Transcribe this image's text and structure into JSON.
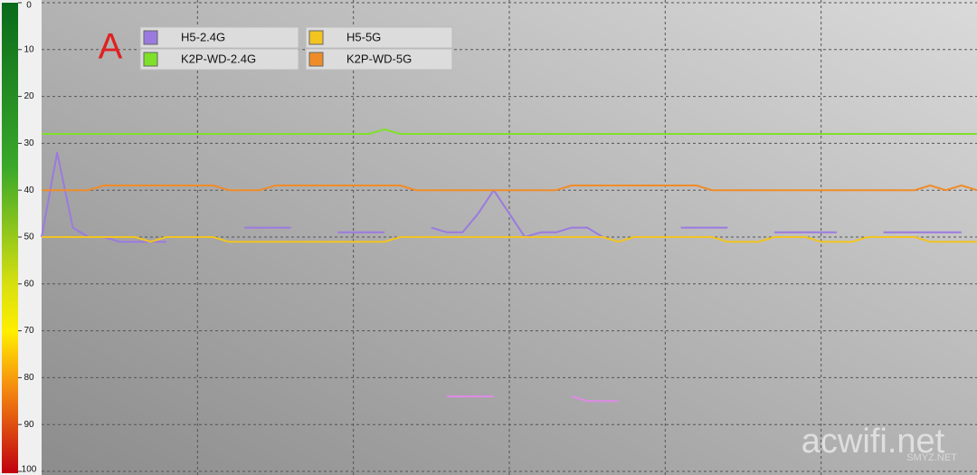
{
  "chart_data": {
    "type": "line",
    "annotation": "A",
    "watermark": "acwifi.net",
    "watermark_small": "SMYZ.NET",
    "ylim": [
      0,
      100
    ],
    "yticks": [
      0,
      10,
      20,
      30,
      40,
      50,
      60,
      70,
      80,
      90,
      100
    ],
    "y_inverted": true,
    "grid": true,
    "xlim": [
      0,
      60
    ],
    "xgrid": [
      10,
      20,
      30,
      40,
      50
    ],
    "x": [
      0,
      1,
      2,
      3,
      4,
      5,
      6,
      7,
      8,
      9,
      10,
      11,
      12,
      13,
      14,
      15,
      16,
      17,
      18,
      19,
      20,
      21,
      22,
      23,
      24,
      25,
      26,
      27,
      28,
      29,
      30,
      31,
      32,
      33,
      34,
      35,
      36,
      37,
      38,
      39,
      40,
      41,
      42,
      43,
      44,
      45,
      46,
      47,
      48,
      49,
      50,
      51,
      52,
      53,
      54,
      55,
      56,
      57,
      58,
      59,
      60
    ],
    "legend": "upper-left",
    "series": [
      {
        "name": "H5-2.4G",
        "color": "#9b7ae0",
        "values": [
          50,
          32,
          48,
          50,
          50,
          51,
          51,
          51,
          51,
          null,
          null,
          null,
          null,
          48,
          48,
          48,
          48,
          null,
          null,
          49,
          49,
          49,
          49,
          null,
          null,
          48,
          49,
          49,
          45,
          40,
          45,
          50,
          49,
          49,
          48,
          48,
          50,
          null,
          null,
          null,
          null,
          48,
          48,
          48,
          48,
          null,
          null,
          49,
          49,
          49,
          49,
          49,
          null,
          null,
          49,
          49,
          49,
          49,
          49,
          49,
          null
        ]
      },
      {
        "name": "K2P-WD-2.4G",
        "color": "#7fe02a",
        "values": [
          28,
          28,
          28,
          28,
          28,
          28,
          28,
          28,
          28,
          28,
          28,
          28,
          28,
          28,
          28,
          28,
          28,
          28,
          28,
          28,
          28,
          28,
          27,
          28,
          28,
          28,
          28,
          28,
          28,
          28,
          28,
          28,
          28,
          28,
          28,
          28,
          28,
          28,
          28,
          28,
          28,
          28,
          28,
          28,
          28,
          28,
          28,
          28,
          28,
          28,
          28,
          28,
          28,
          28,
          28,
          28,
          28,
          28,
          28,
          28,
          28
        ]
      },
      {
        "name": "H5-5G",
        "color": "#f2c420",
        "values": [
          50,
          50,
          50,
          50,
          50,
          50,
          50,
          51,
          50,
          50,
          50,
          50,
          51,
          51,
          51,
          51,
          51,
          51,
          51,
          51,
          51,
          51,
          51,
          50,
          50,
          50,
          50,
          50,
          50,
          50,
          50,
          50,
          50,
          50,
          50,
          50,
          50,
          51,
          50,
          50,
          50,
          50,
          50,
          50,
          51,
          51,
          51,
          50,
          50,
          50,
          51,
          51,
          51,
          50,
          50,
          50,
          50,
          51,
          51,
          51,
          51
        ]
      },
      {
        "name": "K2P-WD-5G",
        "color": "#f08c28",
        "values": [
          40,
          40,
          40,
          40,
          39,
          39,
          39,
          39,
          39,
          39,
          39,
          39,
          40,
          40,
          40,
          39,
          39,
          39,
          39,
          39,
          39,
          39,
          39,
          39,
          40,
          40,
          40,
          40,
          40,
          40,
          40,
          40,
          40,
          40,
          39,
          39,
          39,
          39,
          39,
          39,
          39,
          39,
          39,
          40,
          40,
          40,
          40,
          40,
          40,
          40,
          40,
          40,
          40,
          40,
          40,
          40,
          40,
          39,
          40,
          39,
          40
        ]
      },
      {
        "color": "#e08ae8",
        "values": [
          null,
          null,
          null,
          null,
          null,
          null,
          null,
          null,
          null,
          null,
          null,
          null,
          null,
          null,
          null,
          null,
          null,
          null,
          null,
          null,
          null,
          null,
          null,
          null,
          null,
          null,
          84,
          84,
          84,
          84,
          null,
          null,
          null,
          null,
          84,
          85,
          85,
          85,
          null,
          null,
          null,
          null,
          null,
          null,
          null,
          null,
          null,
          null,
          null,
          null,
          null,
          null,
          null,
          null,
          null,
          null,
          null,
          null,
          null,
          null,
          null
        ]
      }
    ]
  }
}
